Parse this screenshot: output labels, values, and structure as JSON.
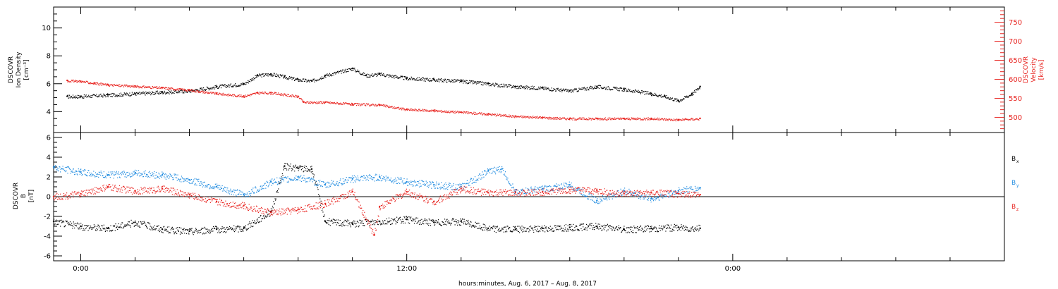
{
  "colors": {
    "black": "#000000",
    "red": "#e8231f",
    "blue": "#1f8be0"
  },
  "chart_data": [
    {
      "type": "scatter",
      "ylabel_lines": [
        "DSCOVR",
        "Ion Density",
        "[cm⁻³]"
      ],
      "y2label_lines": [
        "DSCOVR",
        "Velocity",
        "[km/s]"
      ],
      "ylim": [
        2.5,
        11.5
      ],
      "yticks": [
        "4",
        "6",
        "8",
        "10"
      ],
      "ytick_values": [
        4,
        6,
        8,
        10
      ],
      "y2lim": [
        460,
        790
      ],
      "y2ticks": [
        "500",
        "550",
        "600",
        "650",
        "700",
        "750"
      ],
      "y2tick_values": [
        500,
        550,
        600,
        650,
        700,
        750
      ],
      "series": [
        {
          "color": "#000000",
          "axis": "left",
          "x": [
            -0.5,
            0,
            1,
            2,
            3,
            4,
            5,
            6,
            6.5,
            7,
            7.5,
            8,
            8.5,
            9,
            10,
            10.5,
            11,
            12,
            13,
            14,
            15,
            16,
            17,
            18,
            19,
            20,
            21,
            21.5,
            22,
            22.5,
            22.8
          ],
          "y": [
            5.1,
            5.1,
            5.2,
            5.3,
            5.4,
            5.5,
            5.8,
            6.0,
            6.6,
            6.7,
            6.5,
            6.3,
            6.2,
            6.6,
            7.1,
            6.6,
            6.7,
            6.4,
            6.3,
            6.2,
            6.0,
            5.8,
            5.7,
            5.5,
            5.8,
            5.6,
            5.3,
            5.1,
            4.8,
            5.3,
            5.8
          ]
        },
        {
          "color": "#e8231f",
          "axis": "right",
          "x": [
            -0.5,
            0,
            0.5,
            1,
            2,
            3,
            4,
            5,
            6,
            6.5,
            7,
            8,
            8.2,
            9,
            10,
            11,
            12,
            13,
            14,
            15,
            16,
            17,
            18,
            19,
            20,
            21,
            22,
            22.8
          ],
          "y": [
            597,
            595,
            590,
            586,
            582,
            578,
            572,
            563,
            556,
            565,
            565,
            555,
            540,
            540,
            535,
            533,
            521,
            518,
            514,
            509,
            503,
            500,
            497,
            497,
            497,
            497,
            494,
            497
          ]
        }
      ]
    },
    {
      "type": "scatter",
      "ylabel_lines": [
        "DSCOVR",
        "B",
        "[nT]"
      ],
      "ylim": [
        -6.5,
        6.5
      ],
      "yticks": [
        "-6",
        "-4",
        "-2",
        "0",
        "2",
        "4",
        "6"
      ],
      "ytick_values": [
        -6,
        -4,
        -2,
        0,
        2,
        4,
        6
      ],
      "zero_line": 0,
      "series": [
        {
          "name": "Bx",
          "color": "#000000",
          "x": [
            -1,
            0,
            1,
            2,
            3,
            4,
            5,
            6,
            7,
            7.5,
            8,
            8.5,
            9,
            10,
            11,
            12,
            13,
            14,
            15,
            16,
            17,
            18,
            19,
            20,
            21,
            22,
            22.8
          ],
          "y": [
            -2.5,
            -3.0,
            -3.2,
            -2.6,
            -3.3,
            -3.5,
            -3.3,
            -3.2,
            -1.5,
            3.1,
            2.9,
            2.8,
            -2.5,
            -2.7,
            -2.5,
            -2.3,
            -2.6,
            -2.5,
            -3.2,
            -3.3,
            -3.2,
            -3.1,
            -3.0,
            -3.3,
            -3.2,
            -3.1,
            -3.2
          ]
        },
        {
          "name": "By",
          "color": "#1f8be0",
          "x": [
            -1,
            0,
            1,
            2,
            3,
            4,
            5,
            6,
            7,
            8,
            9,
            10,
            11,
            12,
            13,
            14,
            15,
            15.5,
            16,
            17,
            18,
            19,
            20,
            21,
            22,
            22.8
          ],
          "y": [
            3.0,
            2.5,
            2.2,
            2.4,
            2.2,
            1.7,
            1.0,
            0.2,
            1.5,
            2.0,
            1.2,
            1.8,
            2.0,
            1.5,
            1.2,
            1.0,
            2.6,
            2.8,
            0.5,
            0.8,
            1.2,
            -0.4,
            0.6,
            -0.2,
            0.6,
            0.9
          ]
        },
        {
          "name": "Bz",
          "color": "#e8231f",
          "x": [
            -1,
            0,
            1,
            2,
            3,
            4,
            5,
            6,
            7,
            8,
            9,
            10,
            10.8,
            11,
            12,
            13,
            14,
            15,
            16,
            17,
            18,
            19,
            20,
            21,
            22,
            22.8
          ],
          "y": [
            0.0,
            0.3,
            1.0,
            0.6,
            0.8,
            0.2,
            -0.5,
            -0.9,
            -1.6,
            -1.3,
            -0.7,
            0.5,
            -3.9,
            -1.0,
            0.5,
            -0.5,
            0.8,
            0.4,
            0.4,
            0.5,
            0.7,
            0.6,
            0.3,
            0.4,
            0.3,
            0.2
          ]
        }
      ],
      "legend": [
        {
          "label": "B",
          "sub": "x",
          "color": "#000000"
        },
        {
          "label": "B",
          "sub": "y",
          "color": "#1f8be0"
        },
        {
          "label": "B",
          "sub": "z",
          "color": "#e8231f"
        }
      ]
    }
  ],
  "x_axis": {
    "range_hours": [
      -1,
      34
    ],
    "major_ticks_hours": [
      0,
      12,
      24
    ],
    "major_tick_labels": [
      "0:00",
      "12:00",
      "0:00"
    ],
    "minor_step_hours": 2,
    "label": "hours:minutes, Aug.  6, 2017 – Aug.  8, 2017"
  }
}
